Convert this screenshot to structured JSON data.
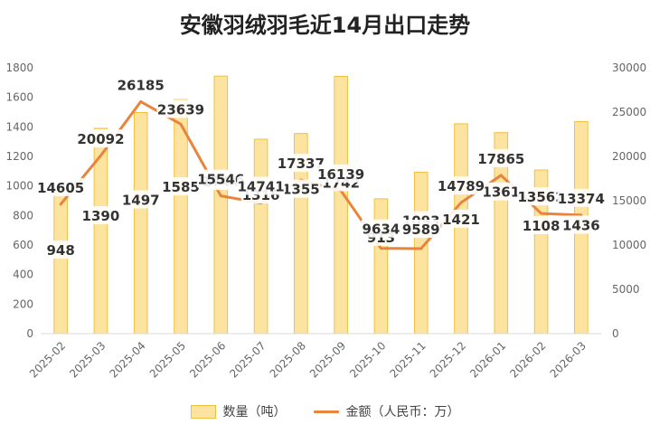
{
  "chart_data": {
    "type": "bar+line",
    "title": "安徽羽绒羽毛近14月出口走势",
    "categories": [
      "2025-02",
      "2025-03",
      "2025-04",
      "2025-05",
      "2025-06",
      "2025-07",
      "2025-08",
      "2025-09",
      "2025-10",
      "2025-11",
      "2025-12",
      "2026-01",
      "2026-02",
      "2026-03"
    ],
    "series": [
      {
        "name": "数量（吨）",
        "type": "bar",
        "axis": "left",
        "values": [
          948,
          1390,
          1497,
          1585,
          1744,
          1316,
          1355,
          1742,
          913,
          1093,
          1421,
          1361,
          1108,
          1436
        ]
      },
      {
        "name": "金额（人民币：万）",
        "type": "line",
        "axis": "right",
        "values": [
          14605,
          20092,
          26185,
          23639,
          15546,
          14741,
          17337,
          16139,
          9634,
          9589,
          14789,
          17865,
          13562,
          13374
        ]
      }
    ],
    "y_left": {
      "min": 0,
      "max": 1800,
      "ticks": [
        0,
        200,
        400,
        600,
        800,
        1000,
        1200,
        1400,
        1600,
        1800
      ]
    },
    "y_right": {
      "min": 0,
      "max": 30000,
      "ticks": [
        0,
        5000,
        10000,
        15000,
        20000,
        25000,
        30000
      ]
    },
    "grid": false,
    "legend": "bottom",
    "colors": {
      "bar_fill": "#fde3a0",
      "bar_stroke": "#f0c040",
      "line": "#e8843c"
    }
  }
}
